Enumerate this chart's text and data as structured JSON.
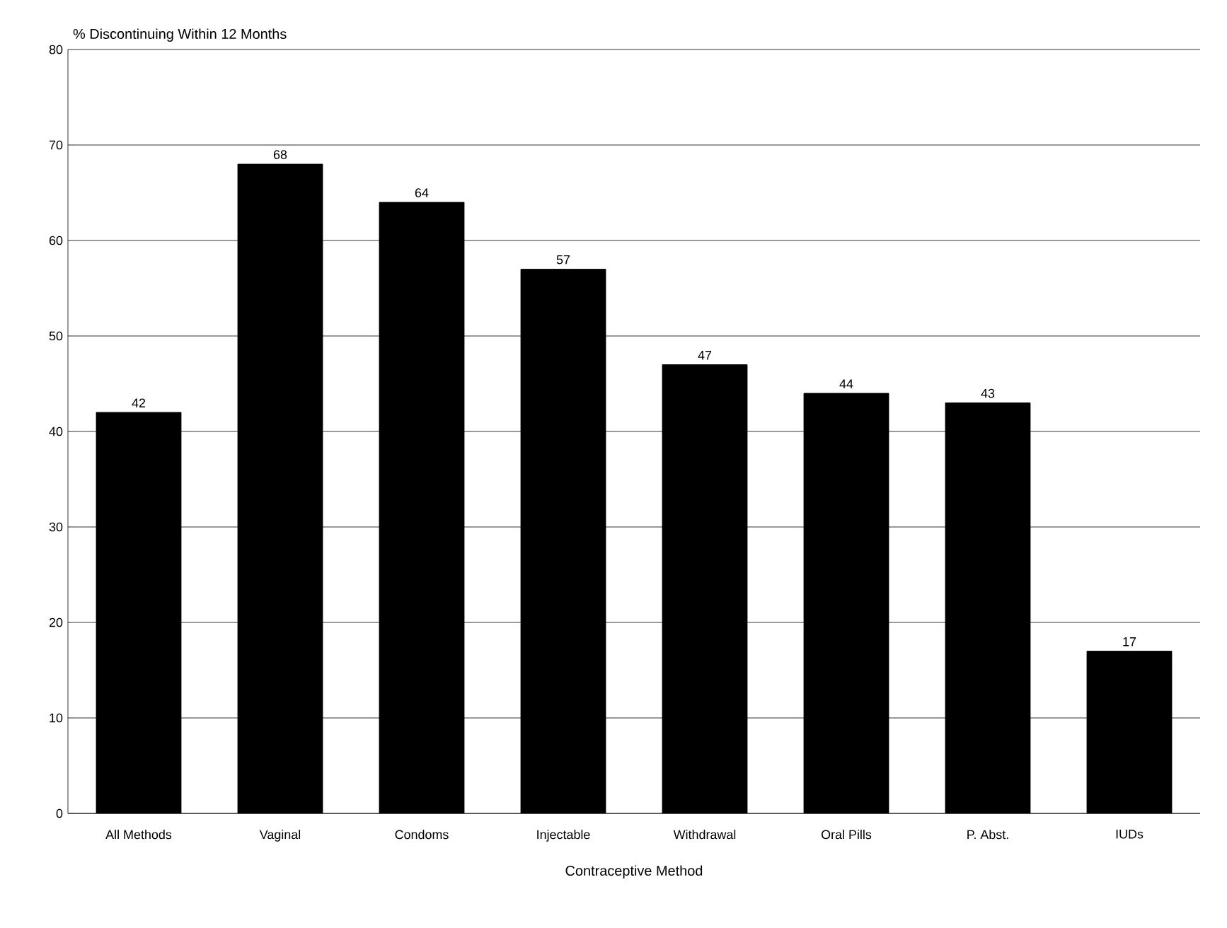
{
  "chart_data": {
    "type": "bar",
    "ylabel": "% Discontinuing Within 12 Months",
    "xlabel": "Contraceptive Method",
    "categories": [
      "All Methods",
      "Vaginal",
      "Condoms",
      "Injectable",
      "Withdrawal",
      "Oral Pills",
      "P. Abst.",
      "IUDs"
    ],
    "values": [
      42,
      68,
      64,
      57,
      47,
      44,
      43,
      17
    ],
    "color": "#000000",
    "ylim": [
      0,
      80
    ],
    "yticks": [
      0,
      10,
      20,
      30,
      40,
      50,
      60,
      70,
      80
    ],
    "grid": "y",
    "data_labels": true
  }
}
